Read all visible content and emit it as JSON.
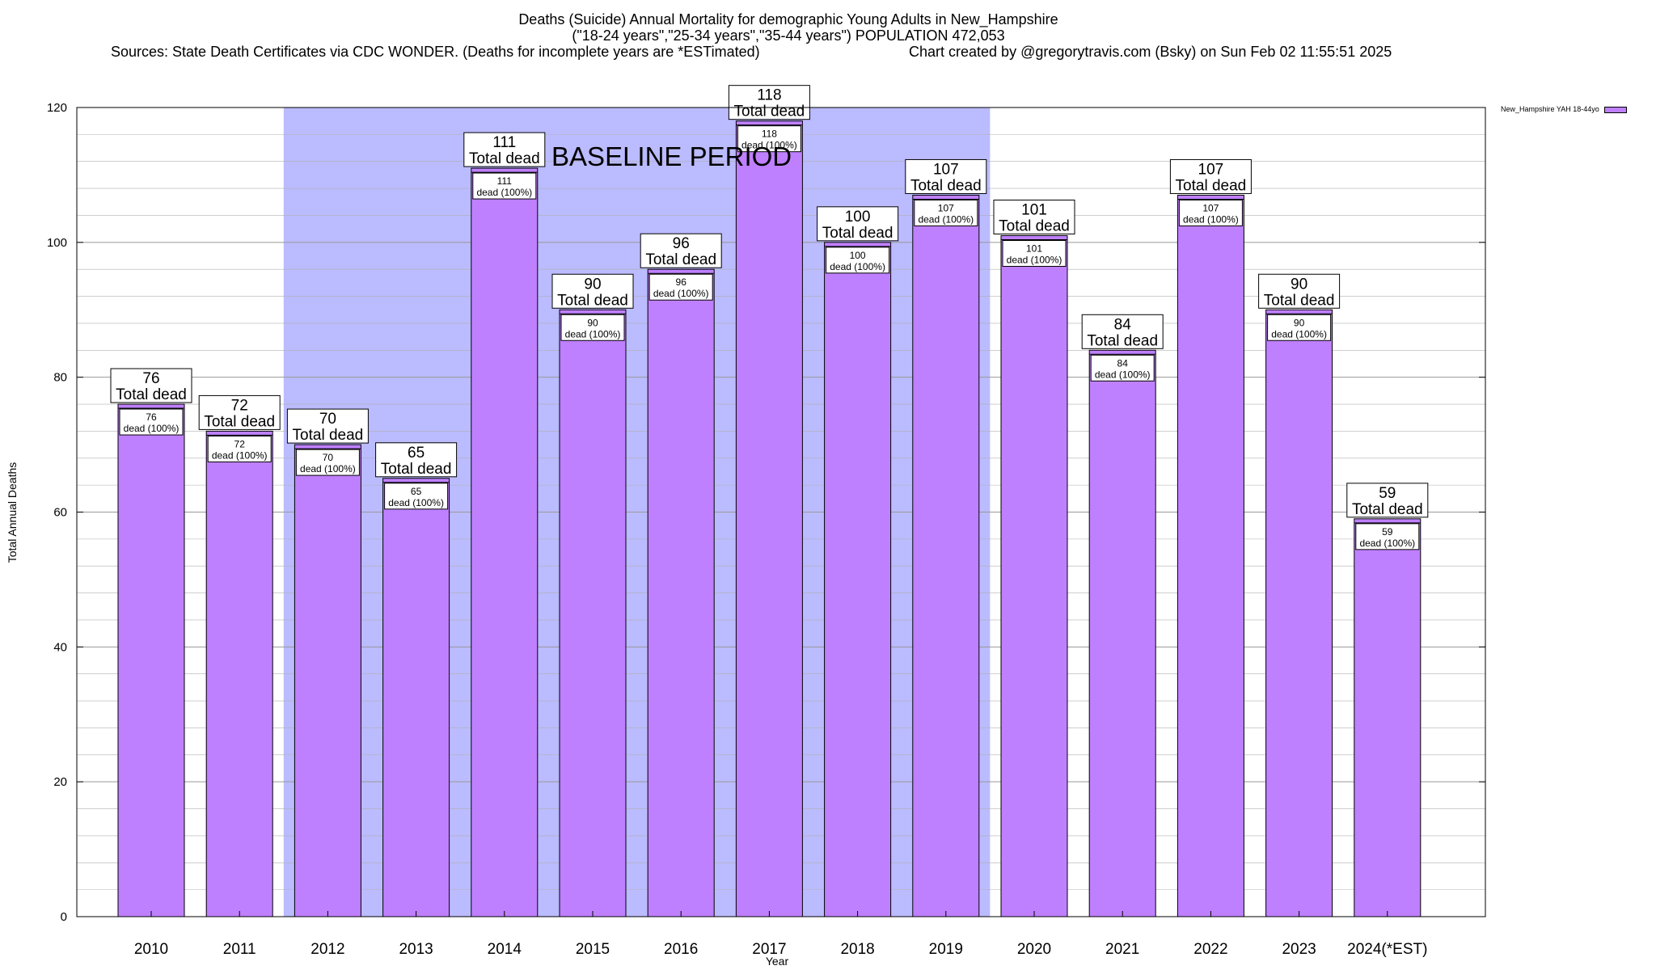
{
  "title": {
    "line1": "Deaths (Suicide) Annual Mortality for demographic Young Adults in New_Hampshire",
    "line2": "(\"18-24 years\",\"25-34 years\",\"35-44 years\") POPULATION 472,053",
    "sources": "Sources: State Death Certificates via CDC WONDER. (Deaths for incomplete years are *ESTimated)",
    "credit": "Chart created by @gregorytravis.com (Bsky) on Sun Feb 02 11:55:51 2025"
  },
  "legend": {
    "label": "New_Hampshire YAH 18-44yo"
  },
  "colors": {
    "bar": "#bf80ff",
    "baseline": "#bbbbff",
    "grid": "#b0b0b0"
  },
  "chart_data": {
    "type": "bar",
    "title": "Deaths (Suicide) Annual Mortality for demographic Young Adults in New_Hampshire",
    "xlabel": "Year",
    "ylabel": "Total Annual Deaths",
    "ylim": [
      0,
      120
    ],
    "yticks": [
      0,
      20,
      40,
      60,
      80,
      100,
      120
    ],
    "grid": true,
    "legend_position": "top-right",
    "categories": [
      "2010",
      "2011",
      "2012",
      "2013",
      "2014",
      "2015",
      "2016",
      "2017",
      "2018",
      "2019",
      "2020",
      "2021",
      "2022",
      "2023",
      "2024(*EST)"
    ],
    "values": [
      76,
      72,
      70,
      65,
      111,
      90,
      96,
      118,
      100,
      107,
      101,
      84,
      107,
      90,
      59
    ],
    "series": [
      {
        "name": "New_Hampshire YAH 18-44yo",
        "values": [
          76,
          72,
          70,
          65,
          111,
          90,
          96,
          118,
          100,
          107,
          101,
          84,
          107,
          90,
          59
        ]
      }
    ],
    "total_label": "Total dead",
    "inner_label": "dead (100%)",
    "baseline_period": {
      "label": "BASELINE PERIOD",
      "start_category": "2012",
      "end_category": "2019"
    }
  }
}
